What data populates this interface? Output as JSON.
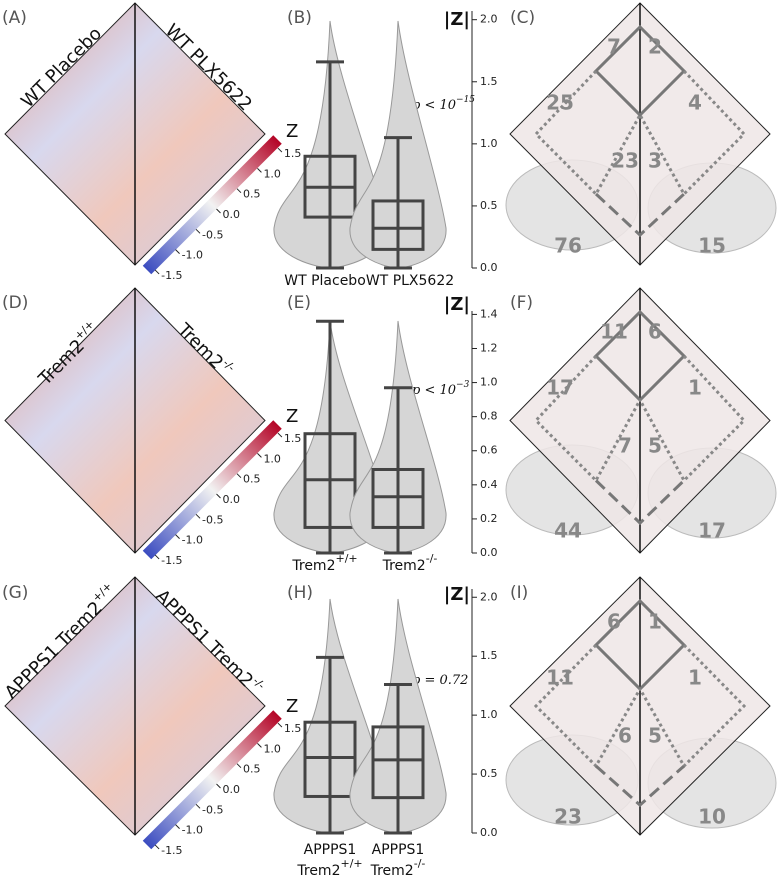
{
  "panel_labels": [
    "(A)",
    "(B)",
    "(C)",
    "(D)",
    "(E)",
    "(F)",
    "(G)",
    "(H)",
    "(I)"
  ],
  "rows": [
    {
      "heatmap": {
        "left_label": {
          "text": "WT Placebo"
        },
        "right_label": {
          "text": "WT PLX5622"
        }
      },
      "colorbar": {
        "title": "Z",
        "lim": [
          -1.6,
          1.6
        ],
        "ticks": [
          -1.5,
          {
            "value": -1,
            "label": "-1.0"
          },
          -0.5,
          {
            "value": 0,
            "label": "0.0"
          },
          0.5,
          {
            "value": 1,
            "label": "1.0"
          },
          1.5
        ]
      },
      "violin": {
        "axis_label": "|Z|",
        "ylim": [
          0,
          2.07
        ],
        "yticks": [
          {
            "value": 0,
            "label": "0.0"
          },
          0.5,
          {
            "value": 1,
            "label": "1.0"
          },
          1.5,
          {
            "value": 2,
            "label": "2.0"
          }
        ],
        "p_value": {
          "text": "p < 10",
          "exponent": "−15"
        },
        "groups": [
          {
            "label": {
              "text": "WT Placebo"
            },
            "box": {
              "whisker_low": 0,
              "q1": 0.41,
              "median": 0.65,
              "q3": 0.9,
              "whisker_high": 1.66
            }
          },
          {
            "label": {
              "text": "WT PLX5622"
            },
            "box": {
              "whisker_low": 0,
              "q1": 0.15,
              "median": 0.32,
              "q3": 0.54,
              "whisker_high": 1.05
            }
          }
        ]
      },
      "network": {
        "counts": [
          7,
          2,
          25,
          4,
          23,
          3
        ],
        "left_total": 76,
        "right_total": 15
      }
    },
    {
      "heatmap": {
        "left_label": {
          "text": "Trem2",
          "sup": "+/+"
        },
        "right_label": {
          "text": "Trem2",
          "sup": "-/-"
        }
      },
      "colorbar": {
        "title": "Z",
        "lim": [
          -1.6,
          1.6
        ],
        "ticks": [
          -1.5,
          {
            "value": -1,
            "label": "-1.0"
          },
          -0.5,
          {
            "value": 0,
            "label": "0.0"
          },
          0.5,
          {
            "value": 1,
            "label": "1.0"
          },
          1.5
        ]
      },
      "violin": {
        "axis_label": "|Z|",
        "ylim": [
          0,
          1.42
        ],
        "yticks": [
          {
            "value": 0,
            "label": "0.0"
          },
          0.2,
          0.4,
          0.6,
          0.8,
          {
            "value": 1,
            "label": "1.0"
          },
          1.2,
          1.4
        ],
        "p_value": {
          "text": "p < 10",
          "exponent": "−3"
        },
        "groups": [
          {
            "label": {
              "text": "Trem2",
              "sup": "+/+"
            },
            "box": {
              "whisker_low": 0,
              "q1": 0.15,
              "median": 0.43,
              "q3": 0.7,
              "whisker_high": 1.36
            }
          },
          {
            "label": {
              "text": "Trem2",
              "sup": "-/-"
            },
            "box": {
              "whisker_low": 0,
              "q1": 0.15,
              "median": 0.33,
              "q3": 0.49,
              "whisker_high": 0.97
            }
          }
        ]
      },
      "network": {
        "counts": [
          11,
          6,
          17,
          1,
          7,
          5
        ],
        "left_total": 44,
        "right_total": 17
      }
    },
    {
      "heatmap": {
        "left_label": {
          "text": "APPPS1 Trem2",
          "sup": "+/+"
        },
        "right_label": {
          "text": "APPPS1 Trem2",
          "sup": "-/-"
        }
      },
      "colorbar": {
        "title": "Z",
        "lim": [
          -1.6,
          1.6
        ],
        "ticks": [
          -1.5,
          {
            "value": -1,
            "label": "-1.0"
          },
          -0.5,
          {
            "value": 0,
            "label": "0.0"
          },
          0.5,
          {
            "value": 1,
            "label": "1.0"
          },
          1.5
        ]
      },
      "violin": {
        "axis_label": "|Z|",
        "ylim": [
          0,
          2.07
        ],
        "yticks": [
          {
            "value": 0,
            "label": "0.0"
          },
          0.5,
          {
            "value": 1,
            "label": "1.0"
          },
          1.5,
          {
            "value": 2,
            "label": "2.0"
          }
        ],
        "p_value": {
          "text": "p = 0.72"
        },
        "groups": [
          {
            "label": {
              "line1": "APPPS1",
              "text": "Trem2",
              "sup": "+/+"
            },
            "box": {
              "whisker_low": 0,
              "q1": 0.31,
              "median": 0.64,
              "q3": 0.94,
              "whisker_high": 1.49
            }
          },
          {
            "label": {
              "line1": "APPPS1",
              "text": "Trem2",
              "sup": "-/-"
            },
            "box": {
              "whisker_low": 0,
              "q1": 0.3,
              "median": 0.62,
              "q3": 0.9,
              "whisker_high": 1.26
            }
          }
        ]
      },
      "network": {
        "counts": [
          6,
          1,
          11,
          1,
          6,
          5
        ],
        "left_total": 23,
        "right_total": 10
      }
    }
  ]
}
